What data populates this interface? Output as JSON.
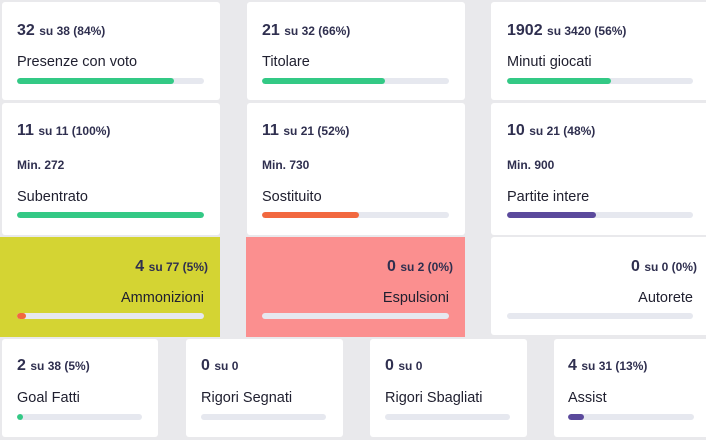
{
  "colors": {
    "green": "#33c985",
    "orange": "#f2683f",
    "purple": "#5b4a9c",
    "track": "#e6e8ef",
    "yellow_bg": "#d4d433",
    "red_bg": "#fb8f8f"
  },
  "cards": [
    {
      "value": "32",
      "of": "su 38 (84%)",
      "label": "Presenze con voto",
      "progress": 0.84,
      "color": "green"
    },
    {
      "value": "21",
      "of": "su 32 (66%)",
      "label": "Titolare",
      "progress": 0.66,
      "color": "green"
    },
    {
      "value": "1902",
      "of": "su 3420 (56%)",
      "label": "Minuti giocati",
      "progress": 0.56,
      "color": "green"
    },
    {
      "value": "11",
      "of": "su 11 (100%)",
      "min": "Min. 272",
      "label": "Subentrato",
      "progress": 1.0,
      "color": "green"
    },
    {
      "value": "11",
      "of": "su 21 (52%)",
      "min": "Min. 730",
      "label": "Sostituito",
      "progress": 0.52,
      "color": "orange"
    },
    {
      "value": "10",
      "of": "su 21 (48%)",
      "min": "Min. 900",
      "label": "Partite intere",
      "progress": 0.48,
      "color": "purple"
    },
    {
      "value": "4",
      "of": "su 77 (5%)",
      "label": "Ammonizioni",
      "progress": 0.05,
      "color": "orange"
    },
    {
      "value": "0",
      "of": "su 2 (0%)",
      "label": "Espulsioni",
      "progress": 0,
      "color": "orange"
    },
    {
      "value": "0",
      "of": "su 0 (0%)",
      "label": "Autorete",
      "progress": 0,
      "color": "orange"
    },
    {
      "value": "2",
      "of": "su 38 (5%)",
      "label": "Goal Fatti",
      "progress": 0.05,
      "color": "green"
    },
    {
      "value": "0",
      "of": "su 0",
      "label": "Rigori Segnati",
      "progress": 0,
      "color": "green"
    },
    {
      "value": "0",
      "of": "su 0",
      "label": "Rigori Sbagliati",
      "progress": 0,
      "color": "green"
    },
    {
      "value": "4",
      "of": "su 31 (13%)",
      "label": "Assist",
      "progress": 0.13,
      "color": "purple"
    }
  ]
}
